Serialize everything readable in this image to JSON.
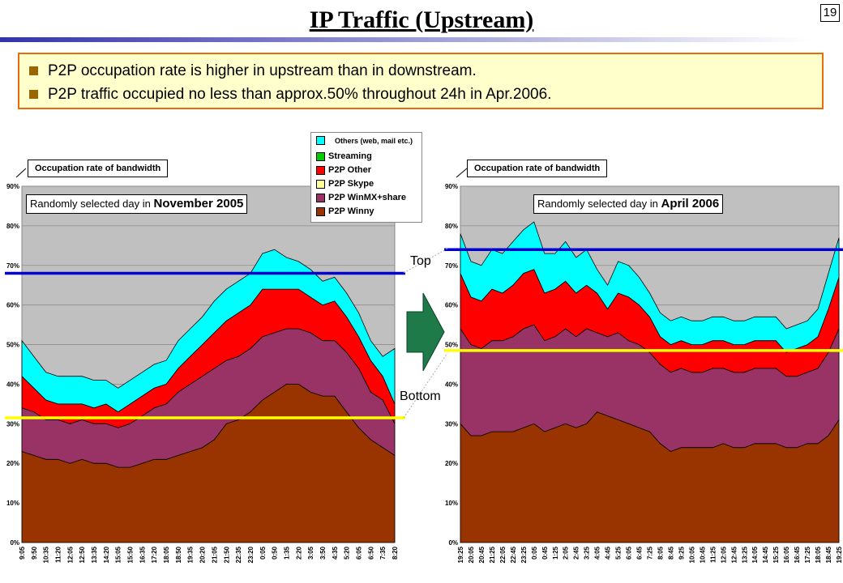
{
  "page": {
    "title": "IP Traffic (Upstream)",
    "page_number": "19",
    "bullets": [
      "P2P occupation rate is higher in upstream than in downstream.",
      "P2P traffic occupied no less than approx.50% throughout 24h in Apr.2006."
    ],
    "label_top": "Top",
    "label_bottom": "Bottom",
    "colors": {
      "winny": "#993300",
      "winmx": "#993366",
      "p2p_other": "#ff0000",
      "skype": "#ffff99",
      "streaming": "#00cc00",
      "others": "#00ffff",
      "plot_bg": "#c0c0c0",
      "top_line": "#0000cc",
      "bottom_line": "#ffff00",
      "arrow": "#1f7a4a",
      "bullet_border": "#e46c0a",
      "bullet_bg": "#ffffcc"
    }
  },
  "legend": [
    {
      "name": "Others (web, mail etc.)",
      "color": "#00ffff"
    },
    {
      "name": "Streaming",
      "color": "#00cc00"
    },
    {
      "name": "P2P Other",
      "color": "#ff0000"
    },
    {
      "name": "P2P Skype",
      "color": "#ffff99"
    },
    {
      "name": "P2P WinMX+share",
      "color": "#993366"
    },
    {
      "name": "P2P Winny",
      "color": "#993300"
    }
  ],
  "chart_data": [
    {
      "type": "area",
      "stacked": true,
      "ylabel": "Occupation rate of bandwidth",
      "subtitle_prefix": "Randomly selected day in ",
      "subtitle_emphasis": "November 2005",
      "ylim": [
        0,
        90
      ],
      "yticks": [
        "0%",
        "10%",
        "20%",
        "30%",
        "40%",
        "50%",
        "60%",
        "70%",
        "80%",
        "90%"
      ],
      "x": [
        "9:05",
        "9:50",
        "10:35",
        "11:20",
        "12:05",
        "12:50",
        "13:35",
        "14:20",
        "15:05",
        "15:50",
        "16:35",
        "17:20",
        "18:05",
        "18:50",
        "19:35",
        "20:20",
        "21:05",
        "21:50",
        "22:35",
        "23:20",
        "0:05",
        "0:50",
        "1:35",
        "2:20",
        "3:05",
        "3:50",
        "4:35",
        "5:20",
        "6:05",
        "6:50",
        "7:35",
        "8:20"
      ],
      "top_line": 68,
      "bottom_line": 31.5,
      "series": [
        {
          "name": "P2P Winny",
          "values": [
            23,
            22,
            21,
            21,
            20,
            21,
            20,
            20,
            19,
            19,
            20,
            21,
            21,
            22,
            23,
            24,
            26,
            30,
            31,
            33,
            36,
            38,
            40,
            40,
            38,
            37,
            37,
            33,
            29,
            26,
            24,
            22
          ]
        },
        {
          "name": "P2P WinMX+share",
          "values": [
            11,
            11,
            10,
            10,
            10,
            10,
            10,
            10,
            10,
            11,
            12,
            13,
            14,
            16,
            17,
            18,
            18,
            16,
            16,
            16,
            16,
            15,
            14,
            14,
            15,
            14,
            14,
            15,
            15,
            12,
            12,
            8
          ]
        },
        {
          "name": "P2P Other",
          "values": [
            8,
            6,
            5,
            4,
            5,
            4,
            4,
            5,
            4,
            5,
            5,
            5,
            5,
            6,
            7,
            8,
            9,
            10,
            11,
            11,
            12,
            11,
            10,
            10,
            9,
            9,
            10,
            9,
            8,
            8,
            6,
            5
          ]
        },
        {
          "name": "Streaming",
          "values": [
            0,
            0,
            0,
            0,
            0,
            0,
            0,
            0,
            0,
            0,
            0,
            0,
            0,
            0,
            0,
            0,
            0,
            0,
            0,
            0,
            0,
            0,
            0,
            0,
            0,
            0,
            0,
            0,
            0,
            0,
            0,
            0
          ]
        },
        {
          "name": "Others (web, mail etc.)",
          "values": [
            9,
            8,
            7,
            7,
            7,
            7,
            7,
            6,
            6,
            6,
            6,
            6,
            6,
            7,
            7,
            7,
            8,
            8,
            8,
            8,
            9,
            10,
            8,
            7,
            7,
            6,
            6,
            6,
            6,
            5,
            5,
            14
          ]
        }
      ]
    },
    {
      "type": "area",
      "stacked": true,
      "ylabel": "Occupation rate of bandwidth",
      "subtitle_prefix": "Randomly selected day in ",
      "subtitle_emphasis": "April 2006",
      "ylim": [
        0,
        90
      ],
      "yticks": [
        "0%",
        "10%",
        "20%",
        "30%",
        "40%",
        "50%",
        "60%",
        "70%",
        "80%",
        "90%"
      ],
      "x": [
        "19:25",
        "20:05",
        "20:45",
        "21:25",
        "22:05",
        "22:45",
        "23:25",
        "0:05",
        "0:45",
        "1:25",
        "2:05",
        "2:45",
        "3:25",
        "4:05",
        "4:45",
        "5:25",
        "6:05",
        "6:45",
        "7:25",
        "8:05",
        "8:45",
        "9:25",
        "10:05",
        "10:45",
        "11:25",
        "12:05",
        "12:45",
        "13:25",
        "14:05",
        "14:45",
        "15:25",
        "16:05",
        "16:45",
        "17:25",
        "18:05",
        "18:45",
        "19:25"
      ],
      "top_line": 74,
      "bottom_line": 48.5,
      "series": [
        {
          "name": "P2P Winny",
          "values": [
            30,
            27,
            27,
            28,
            28,
            28,
            29,
            30,
            28,
            29,
            30,
            29,
            30,
            33,
            32,
            31,
            30,
            29,
            28,
            25,
            23,
            24,
            24,
            24,
            24,
            25,
            24,
            24,
            25,
            25,
            25,
            24,
            24,
            25,
            25,
            27,
            31
          ]
        },
        {
          "name": "P2P WinMX+share",
          "values": [
            24,
            23,
            22,
            23,
            23,
            24,
            25,
            25,
            23,
            23,
            24,
            23,
            24,
            20,
            20,
            22,
            21,
            21,
            20,
            20,
            20,
            20,
            19,
            19,
            20,
            19,
            19,
            19,
            19,
            19,
            19,
            18,
            18,
            18,
            19,
            21,
            23
          ]
        },
        {
          "name": "P2P Other",
          "values": [
            14,
            12,
            12,
            13,
            12,
            13,
            14,
            14,
            12,
            12,
            12,
            11,
            11,
            10,
            7,
            10,
            11,
            10,
            9,
            7,
            7,
            7,
            7,
            7,
            7,
            7,
            7,
            7,
            7,
            7,
            7,
            6,
            7,
            7,
            8,
            11,
            13
          ]
        },
        {
          "name": "Streaming",
          "values": [
            0,
            0,
            0,
            0,
            0,
            0,
            0,
            0,
            0,
            0,
            0,
            0,
            0,
            0,
            0,
            0,
            0,
            0,
            0,
            0,
            0,
            0,
            0,
            0,
            0,
            0,
            0,
            0,
            0,
            0,
            0,
            0,
            0,
            0,
            0,
            0,
            0
          ]
        },
        {
          "name": "Others (web, mail etc.)",
          "values": [
            10,
            9,
            9,
            10,
            10,
            11,
            11,
            12,
            10,
            9,
            10,
            9,
            9,
            6,
            6,
            8,
            8,
            7,
            6,
            6,
            6,
            6,
            6,
            6,
            6,
            6,
            6,
            6,
            6,
            6,
            6,
            6,
            6,
            6,
            7,
            9,
            10
          ]
        }
      ]
    }
  ]
}
